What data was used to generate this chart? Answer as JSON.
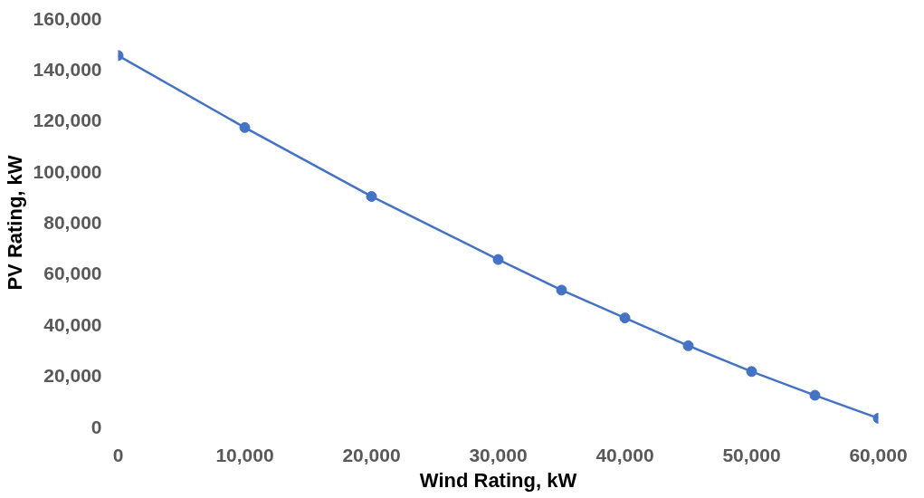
{
  "chart_data": {
    "type": "line",
    "xlabel": "Wind Rating, kW",
    "ylabel": "PV Rating, kW",
    "x": [
      0,
      10000,
      20000,
      30000,
      35000,
      40000,
      45000,
      50000,
      55000,
      60000
    ],
    "series": [
      {
        "color": "#4472c4",
        "values": [
          145500,
          117300,
          90300,
          65600,
          53600,
          42700,
          31800,
          21700,
          12400,
          3400
        ]
      }
    ],
    "xlim": [
      0,
      60000
    ],
    "ylim": [
      0,
      160000
    ],
    "xticks": [
      {
        "value": 0,
        "label": "0"
      },
      {
        "value": 10000,
        "label": "10,000"
      },
      {
        "value": 20000,
        "label": "20,000"
      },
      {
        "value": 30000,
        "label": "30,000"
      },
      {
        "value": 40000,
        "label": "40,000"
      },
      {
        "value": 50000,
        "label": "50,000"
      },
      {
        "value": 60000,
        "label": "60,000"
      }
    ],
    "yticks": [
      {
        "value": 0,
        "label": "0"
      },
      {
        "value": 20000,
        "label": "20,000"
      },
      {
        "value": 40000,
        "label": "40,000"
      },
      {
        "value": 60000,
        "label": "60,000"
      },
      {
        "value": 80000,
        "label": "80,000"
      },
      {
        "value": 100000,
        "label": "100,000"
      },
      {
        "value": 120000,
        "label": "120,000"
      },
      {
        "value": 140000,
        "label": "140,000"
      },
      {
        "value": 160000,
        "label": "160,000"
      }
    ],
    "marker": "circle",
    "line_style": "solid",
    "grid": false
  }
}
